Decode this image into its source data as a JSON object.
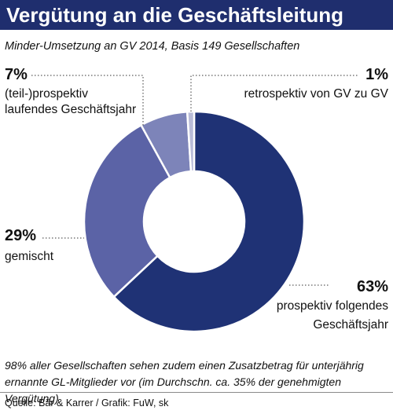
{
  "title": "Vergütung an die Geschäftsleitung",
  "subtitle": "Minder-Umsetzung an GV 2014, Basis 149 Gesellschaften",
  "chart_data": {
    "type": "pie",
    "variant": "donut",
    "slices": [
      {
        "label_lines": [
          "prospektiv folgendes",
          "Geschäftsjahr"
        ],
        "pct_label": "63%",
        "value": 63,
        "color": "#1f3275"
      },
      {
        "label_lines": [
          "gemischt"
        ],
        "pct_label": "29%",
        "value": 29,
        "color": "#5b63a6"
      },
      {
        "label_lines": [
          "(teil-)prospektiv",
          "laufendes Geschäftsjahr"
        ],
        "pct_label": "7%",
        "value": 7,
        "color": "#7d84b9"
      },
      {
        "label_lines": [
          "retrospektiv von GV zu GV"
        ],
        "pct_label": "1%",
        "value": 1,
        "color": "#b9bcd8"
      }
    ]
  },
  "note": "98% aller Gesellschaften sehen zudem einen Zusatzbetrag für unterjährig ernannte GL-Mitglieder vor (im Durchschn. ca. 35% der genehmigten Vergütung)",
  "source": "Quelle: Bär & Karrer / Grafik: FuW, sk"
}
